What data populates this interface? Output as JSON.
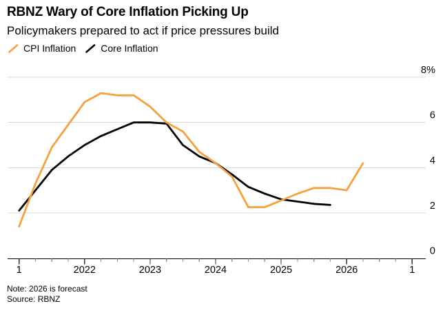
{
  "header": {
    "title": "RBNZ Wary of Core Inflation Picking Up",
    "subtitle": "Policymakers prepared to act if price pressures build"
  },
  "legend": {
    "items": [
      {
        "label": "CPI Inflation",
        "color": "#f5a13d"
      },
      {
        "label": "Core Inflation",
        "color": "#000000"
      }
    ]
  },
  "footer": {
    "note": "Note: 2026 is forecast",
    "source": "Source: RBNZ"
  },
  "chart_data": {
    "type": "line",
    "title": "RBNZ Wary of Core Inflation Picking Up",
    "subtitle": "Policymakers prepared to act if price pressures build",
    "frequency": "quarterly",
    "categories": [
      "2021 Q1",
      "2021 Q2",
      "2021 Q3",
      "2021 Q4",
      "2022 Q1",
      "2022 Q2",
      "2022 Q3",
      "2022 Q4",
      "2023 Q1",
      "2023 Q2",
      "2023 Q3",
      "2023 Q4",
      "2024 Q1",
      "2024 Q2",
      "2024 Q3",
      "2024 Q4",
      "2025 Q1",
      "2025 Q2",
      "2025 Q3",
      "2025 Q4",
      "2026 Q1",
      "2026 Q2"
    ],
    "series": [
      {
        "name": "CPI Inflation",
        "color": "#f5a13d",
        "values": [
          1.4,
          3.3,
          4.9,
          5.9,
          6.9,
          7.3,
          7.2,
          7.2,
          6.7,
          6.0,
          5.6,
          4.7,
          4.2,
          3.6,
          2.25,
          2.25,
          2.55,
          2.85,
          3.1,
          3.1,
          3.0,
          4.2
        ]
      },
      {
        "name": "Core Inflation",
        "color": "#000000",
        "values": [
          2.1,
          3.0,
          3.9,
          4.5,
          5.0,
          5.4,
          5.7,
          6.0,
          6.0,
          5.95,
          5.0,
          4.5,
          4.2,
          3.7,
          3.15,
          2.85,
          2.6,
          2.5,
          2.4,
          2.35
        ]
      }
    ],
    "y_ticks": [
      {
        "label": "8%",
        "value": 8
      },
      {
        "label": "6",
        "value": 6
      },
      {
        "label": "4",
        "value": 4
      },
      {
        "label": "2",
        "value": 2
      },
      {
        "label": "0",
        "value": 0
      }
    ],
    "x_tick_labels": [
      {
        "label": "1",
        "quarter": 0
      },
      {
        "label": "2022",
        "quarter": 4
      },
      {
        "label": "2023",
        "quarter": 8
      },
      {
        "label": "2024",
        "quarter": 12
      },
      {
        "label": "2025",
        "quarter": 16
      },
      {
        "label": "2026",
        "quarter": 20
      },
      {
        "label": "1",
        "quarter": 24
      }
    ],
    "x_total_quarters": 24,
    "ylim": [
      0,
      8
    ],
    "grid": "horizontal",
    "gridline_color": "#d9d9d9",
    "legend_position": "top-left",
    "y_axis_side": "right"
  }
}
